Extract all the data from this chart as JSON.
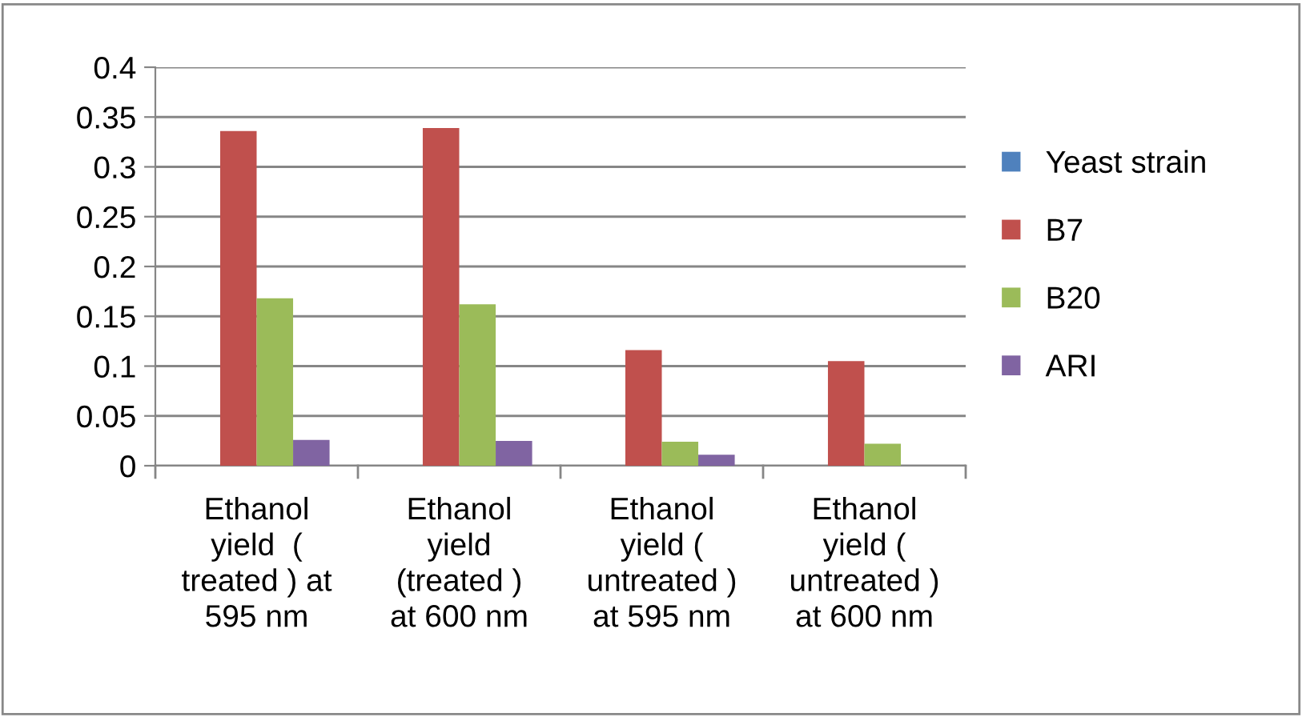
{
  "chart_data": {
    "type": "bar",
    "categories": [
      "Ethanol\nyield  (\ntreated ) at\n595 nm",
      "Ethanol\nyield\n(treated )\nat 600 nm",
      "Ethanol\nyield (\nuntreated )\nat 595 nm",
      "Ethanol\nyield (\nuntreated )\nat 600 nm"
    ],
    "series": [
      {
        "name": "Yeast strain",
        "color": "#4f81bd",
        "values": [
          0,
          0,
          0,
          0
        ]
      },
      {
        "name": "B7",
        "color": "#c0504d",
        "values": [
          0.336,
          0.339,
          0.116,
          0.105
        ]
      },
      {
        "name": "B20",
        "color": "#9bbb59",
        "values": [
          0.168,
          0.162,
          0.024,
          0.022
        ]
      },
      {
        "name": "ARI",
        "color": "#8064a2",
        "values": [
          0.026,
          0.025,
          0.011,
          0
        ]
      }
    ],
    "ylim": [
      0,
      0.4
    ],
    "yticks": [
      0,
      0.05,
      0.1,
      0.15,
      0.2,
      0.25,
      0.3,
      0.35,
      0.4
    ],
    "grid": "y",
    "legend": "right"
  }
}
